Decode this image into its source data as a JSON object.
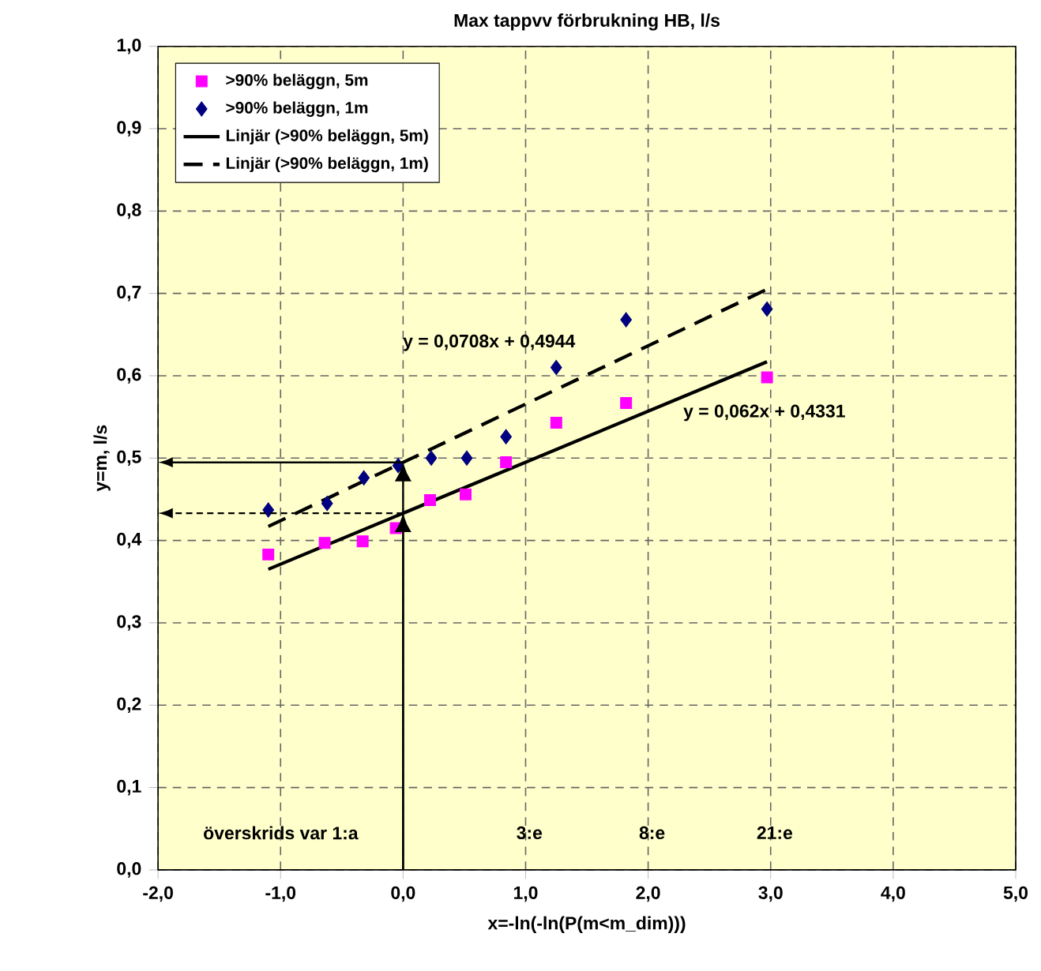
{
  "chart_data": {
    "type": "scatter",
    "title": "Max tappvv förbrukning HB, l/s",
    "xlabel": "x=-ln(-ln(P(m<m_dim)))",
    "ylabel": "y=m, l/s",
    "xlim": [
      -2,
      5
    ],
    "ylim": [
      0,
      1
    ],
    "xticks": [
      {
        "value": -2,
        "label": "-2,0"
      },
      {
        "value": -1,
        "label": "-1,0"
      },
      {
        "value": 0,
        "label": "0,0"
      },
      {
        "value": 1,
        "label": "1,0"
      },
      {
        "value": 2,
        "label": "2,0"
      },
      {
        "value": 3,
        "label": "3,0"
      },
      {
        "value": 4,
        "label": "4,0"
      },
      {
        "value": 5,
        "label": "5,0"
      }
    ],
    "yticks": [
      {
        "value": 0,
        "label": "0,0"
      },
      {
        "value": 0.1,
        "label": "0,1"
      },
      {
        "value": 0.2,
        "label": "0,2"
      },
      {
        "value": 0.3,
        "label": "0,3"
      },
      {
        "value": 0.4,
        "label": "0,4"
      },
      {
        "value": 0.5,
        "label": "0,5"
      },
      {
        "value": 0.6,
        "label": "0,6"
      },
      {
        "value": 0.7,
        "label": "0,7"
      },
      {
        "value": 0.8,
        "label": "0,8"
      },
      {
        "value": 0.9,
        "label": "0,9"
      },
      {
        "value": 1,
        "label": "1,0"
      }
    ],
    "grid": true,
    "legend": "top left",
    "series": [
      {
        "name": ">90% beläggn, 5m",
        "marker": "square",
        "color": "#ff00ff",
        "x": [
          -1.1,
          -0.64,
          -0.33,
          -0.06,
          0.22,
          0.51,
          0.84,
          1.25,
          1.82,
          2.97
        ],
        "values": [
          0.383,
          0.397,
          0.399,
          0.415,
          0.449,
          0.456,
          0.495,
          0.543,
          0.567,
          0.598
        ]
      },
      {
        "name": ">90% beläggn, 1m",
        "marker": "diamond",
        "color": "#000080",
        "x": [
          -1.1,
          -0.62,
          -0.32,
          -0.04,
          0.23,
          0.52,
          0.84,
          1.25,
          1.82,
          2.97
        ],
        "values": [
          0.437,
          0.445,
          0.476,
          0.491,
          0.5,
          0.5,
          0.526,
          0.61,
          0.668,
          0.681
        ]
      },
      {
        "name": "Linjär (>90% beläggn, 5m)",
        "type": "line",
        "marker": "none",
        "line_style": "solid",
        "color": "#000000",
        "x": [
          -1.1,
          2.97
        ],
        "values": [
          0.365,
          0.617
        ]
      },
      {
        "name": "Linjär (>90% beläggn, 1m)",
        "type": "line",
        "marker": "none",
        "line_style": "dashed",
        "color": "#000000",
        "x": [
          -1.1,
          2.97
        ],
        "values": [
          0.417,
          0.705
        ]
      }
    ],
    "annotations": [
      "y = 0,0708x + 0,4944",
      "y = 0,062x + 0,4331",
      "överskrids var 1:a",
      "3:e",
      "8:e",
      "21:e"
    ]
  }
}
